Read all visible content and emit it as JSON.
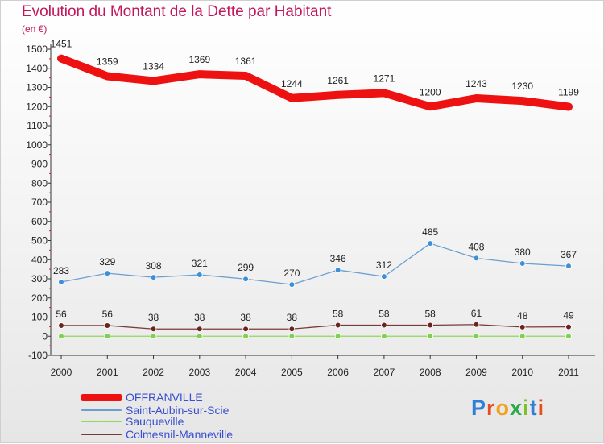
{
  "title": "Evolution du Montant de la Dette par Habitant",
  "unit_label": "(en €)",
  "brand": {
    "text": "Proxiti",
    "letter_colors": [
      "#2f7fd8",
      "#e84d1c",
      "#f2a11c",
      "#2aa84a",
      "#7fbf2a",
      "#2f7fd8",
      "#e84d1c"
    ]
  },
  "chart_data": {
    "type": "line",
    "title": "Evolution du Montant de la Dette par Habitant",
    "ylabel": "(en €)",
    "x": [
      "2000",
      "2001",
      "2002",
      "2003",
      "2004",
      "2005",
      "2006",
      "2007",
      "2008",
      "2009",
      "2010",
      "2011"
    ],
    "ylim": [
      -100,
      1500
    ],
    "yticks": [
      -100,
      0,
      100,
      200,
      300,
      400,
      500,
      600,
      700,
      800,
      900,
      1000,
      1100,
      1200,
      1300,
      1400,
      1500
    ],
    "grid": false,
    "legend_position": "bottom-left",
    "series": [
      {
        "name": "OFFRANVILLE",
        "color": "#ee1111",
        "values": [
          1451,
          1359,
          1334,
          1369,
          1361,
          1244,
          1261,
          1271,
          1200,
          1243,
          1230,
          1199
        ],
        "labels": true,
        "markers": false,
        "width": 10
      },
      {
        "name": "Saint-Aubin-sur-Scie",
        "color": "#6a9fd0",
        "marker_color": "#3d8fd6",
        "values": [
          283,
          329,
          308,
          321,
          299,
          270,
          346,
          312,
          485,
          408,
          380,
          367
        ],
        "labels": true,
        "markers": true,
        "width": 1.3
      },
      {
        "name": "Sauqueville",
        "color": "#93d65c",
        "marker_color": "#7fd04a",
        "values": [
          0,
          0,
          0,
          0,
          0,
          0,
          0,
          0,
          0,
          0,
          0,
          0
        ],
        "labels": false,
        "markers": true,
        "width": 1.3
      },
      {
        "name": "Colmesnil-Manneville",
        "color": "#7a3a3a",
        "marker_color": "#6b2222",
        "values": [
          56,
          56,
          38,
          38,
          38,
          38,
          58,
          58,
          58,
          61,
          48,
          49
        ],
        "labels": true,
        "markers": true,
        "width": 1.3
      }
    ]
  }
}
